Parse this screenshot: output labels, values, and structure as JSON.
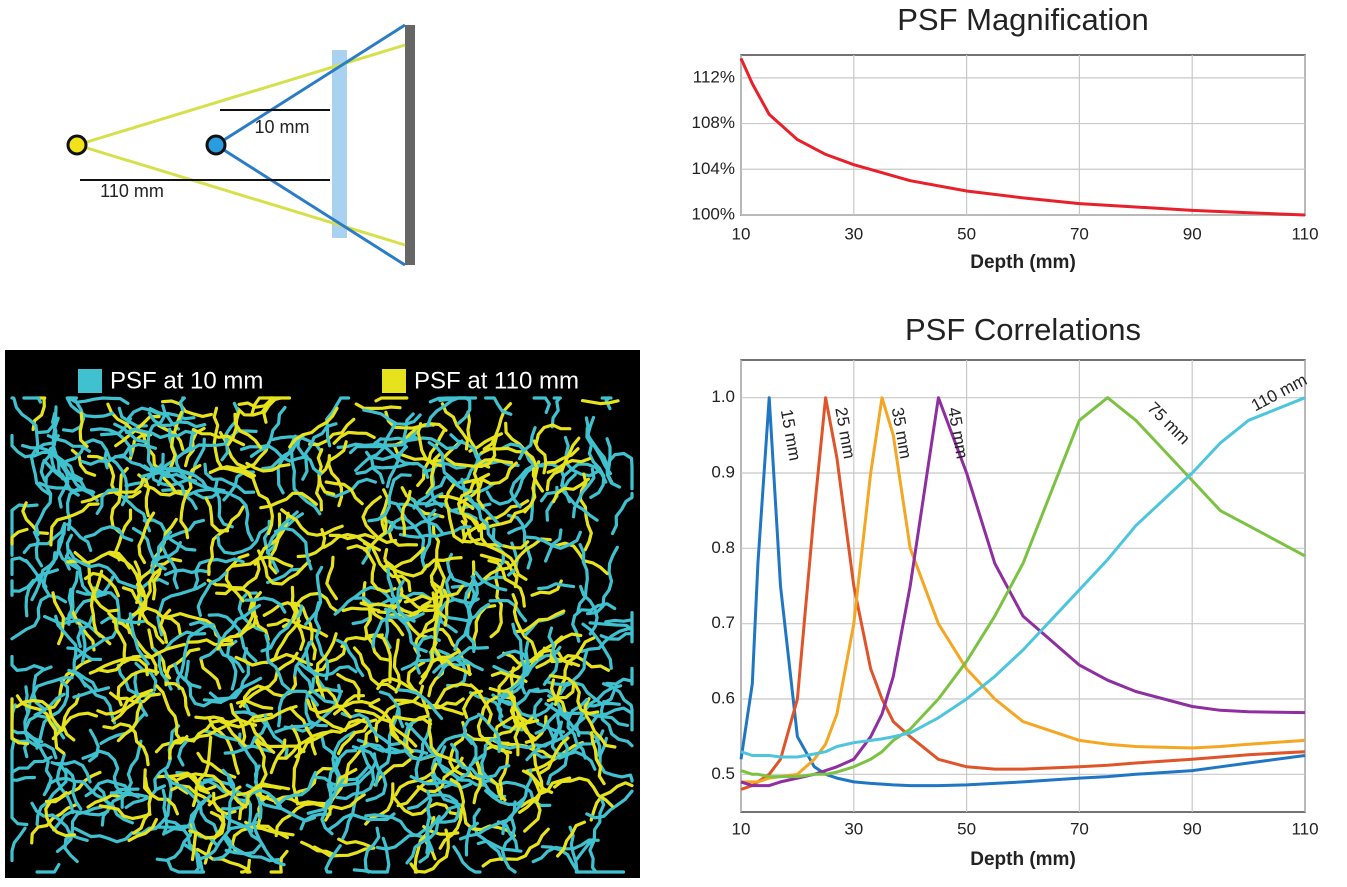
{
  "diagram": {
    "labels": [
      "10 mm",
      "110 mm"
    ]
  },
  "psf_image": {
    "legend": [
      {
        "label": "PSF at 10 mm",
        "color": "#3fc1cf"
      },
      {
        "label": "PSF at 110 mm",
        "color": "#e6e21c"
      }
    ]
  },
  "chart_data": [
    {
      "type": "line",
      "title": "PSF Magnification",
      "xlabel": "Depth (mm)",
      "x": [
        10,
        12,
        15,
        20,
        25,
        30,
        40,
        50,
        60,
        70,
        80,
        90,
        100,
        110
      ],
      "values": [
        113.7,
        111.5,
        108.8,
        106.6,
        105.3,
        104.4,
        103.0,
        102.1,
        101.5,
        101.0,
        100.7,
        100.4,
        100.2,
        100
      ],
      "color": "#e8202a",
      "xlim": [
        10,
        110
      ],
      "xticks": [
        10,
        30,
        50,
        70,
        90,
        110
      ],
      "ylim": [
        100,
        114
      ],
      "yticks": [
        {
          "value": 100,
          "label": "100%"
        },
        {
          "value": 104,
          "label": "104%"
        },
        {
          "value": 108,
          "label": "108%"
        },
        {
          "value": 112,
          "label": "112%"
        }
      ],
      "grid": true
    },
    {
      "type": "line",
      "title": "PSF Correlations",
      "xlabel": "Depth (mm)",
      "x": [
        10,
        12,
        13,
        15,
        17,
        20,
        23,
        25,
        27,
        30,
        33,
        35,
        37,
        40,
        45,
        50,
        55,
        60,
        70,
        75,
        80,
        90,
        95,
        100,
        110
      ],
      "series": [
        {
          "name": "15 mm",
          "color": "#1f77c4",
          "values": [
            0.52,
            0.62,
            0.78,
            1.0,
            0.75,
            0.55,
            0.51,
            0.5,
            0.495,
            0.49,
            0.488,
            0.487,
            0.486,
            0.485,
            0.485,
            0.486,
            0.488,
            0.49,
            0.495,
            0.497,
            0.5,
            0.505,
            0.51,
            0.515,
            0.525
          ]
        },
        {
          "name": "25 mm",
          "color": "#e0542a",
          "values": [
            0.48,
            0.485,
            0.49,
            0.5,
            0.52,
            0.6,
            0.85,
            1.0,
            0.92,
            0.75,
            0.64,
            0.6,
            0.57,
            0.55,
            0.52,
            0.51,
            0.507,
            0.507,
            0.51,
            0.512,
            0.515,
            0.52,
            0.523,
            0.526,
            0.53
          ]
        },
        {
          "name": "35 mm",
          "color": "#f5a623",
          "values": [
            0.49,
            0.49,
            0.49,
            0.495,
            0.497,
            0.5,
            0.52,
            0.54,
            0.58,
            0.7,
            0.9,
            1.0,
            0.95,
            0.8,
            0.7,
            0.64,
            0.6,
            0.57,
            0.545,
            0.54,
            0.537,
            0.535,
            0.537,
            0.54,
            0.545
          ]
        },
        {
          "name": "45 mm",
          "color": "#8e2ea0",
          "values": [
            0.49,
            0.485,
            0.485,
            0.485,
            0.49,
            0.495,
            0.5,
            0.505,
            0.51,
            0.52,
            0.55,
            0.58,
            0.63,
            0.75,
            1.0,
            0.9,
            0.78,
            0.71,
            0.645,
            0.625,
            0.61,
            0.59,
            0.585,
            0.583,
            0.582
          ]
        },
        {
          "name": "75 mm",
          "color": "#7cc242",
          "values": [
            0.505,
            0.5,
            0.5,
            0.497,
            0.497,
            0.497,
            0.5,
            0.5,
            0.503,
            0.51,
            0.52,
            0.53,
            0.545,
            0.56,
            0.6,
            0.65,
            0.71,
            0.78,
            0.97,
            1.0,
            0.97,
            0.89,
            0.85,
            0.83,
            0.79
          ]
        },
        {
          "name": "110 mm",
          "color": "#4dc5dc",
          "values": [
            0.53,
            0.525,
            0.525,
            0.525,
            0.523,
            0.523,
            0.527,
            0.53,
            0.537,
            0.542,
            0.545,
            0.547,
            0.55,
            0.555,
            0.575,
            0.6,
            0.63,
            0.665,
            0.745,
            0.785,
            0.83,
            0.9,
            0.94,
            0.97,
            1.0
          ]
        }
      ],
      "xlim": [
        10,
        110
      ],
      "xticks": [
        10,
        30,
        50,
        70,
        90,
        110
      ],
      "ylim": [
        0.45,
        1.05
      ],
      "yticks": [
        0.5,
        0.6,
        0.7,
        0.8,
        0.9,
        {
          "value": 1,
          "label": "1.0"
        }
      ],
      "grid": true
    }
  ]
}
